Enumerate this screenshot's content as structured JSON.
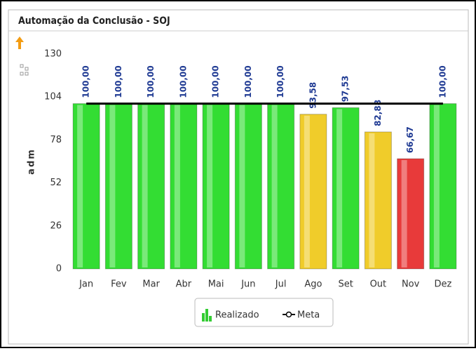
{
  "chart_data": {
    "type": "bar",
    "title": "Automação da Conclusão - SOJ",
    "y_label": "adm",
    "categories": [
      "Jan",
      "Fev",
      "Mar",
      "Abr",
      "Mai",
      "Jun",
      "Jul",
      "Ago",
      "Set",
      "Out",
      "Nov",
      "Dez"
    ],
    "series": [
      {
        "name": "Realizado",
        "colors": [
          "#33dd33",
          "#33dd33",
          "#33dd33",
          "#33dd33",
          "#33dd33",
          "#33dd33",
          "#33dd33",
          "#f0cc2a",
          "#33dd33",
          "#f0cc2a",
          "#e83a3a",
          "#33dd33"
        ],
        "values": [
          100,
          100,
          100,
          100,
          100,
          100,
          100,
          93.58,
          97.53,
          82.88,
          66.67,
          100
        ],
        "value_labels": [
          "100,00",
          "100,00",
          "100,00",
          "100,00",
          "100,00",
          "100,00",
          "100,00",
          "93,58",
          "97,53",
          "82,88",
          "66,67",
          "100,00"
        ]
      },
      {
        "name": "Meta",
        "type": "line",
        "color": "#000000",
        "values": [
          100,
          100,
          100,
          100,
          100,
          100,
          100,
          100,
          100,
          100,
          100,
          100
        ]
      }
    ],
    "ylim": [
      0,
      130
    ],
    "yticks": [
      0,
      26,
      52,
      78,
      104,
      130
    ]
  }
}
